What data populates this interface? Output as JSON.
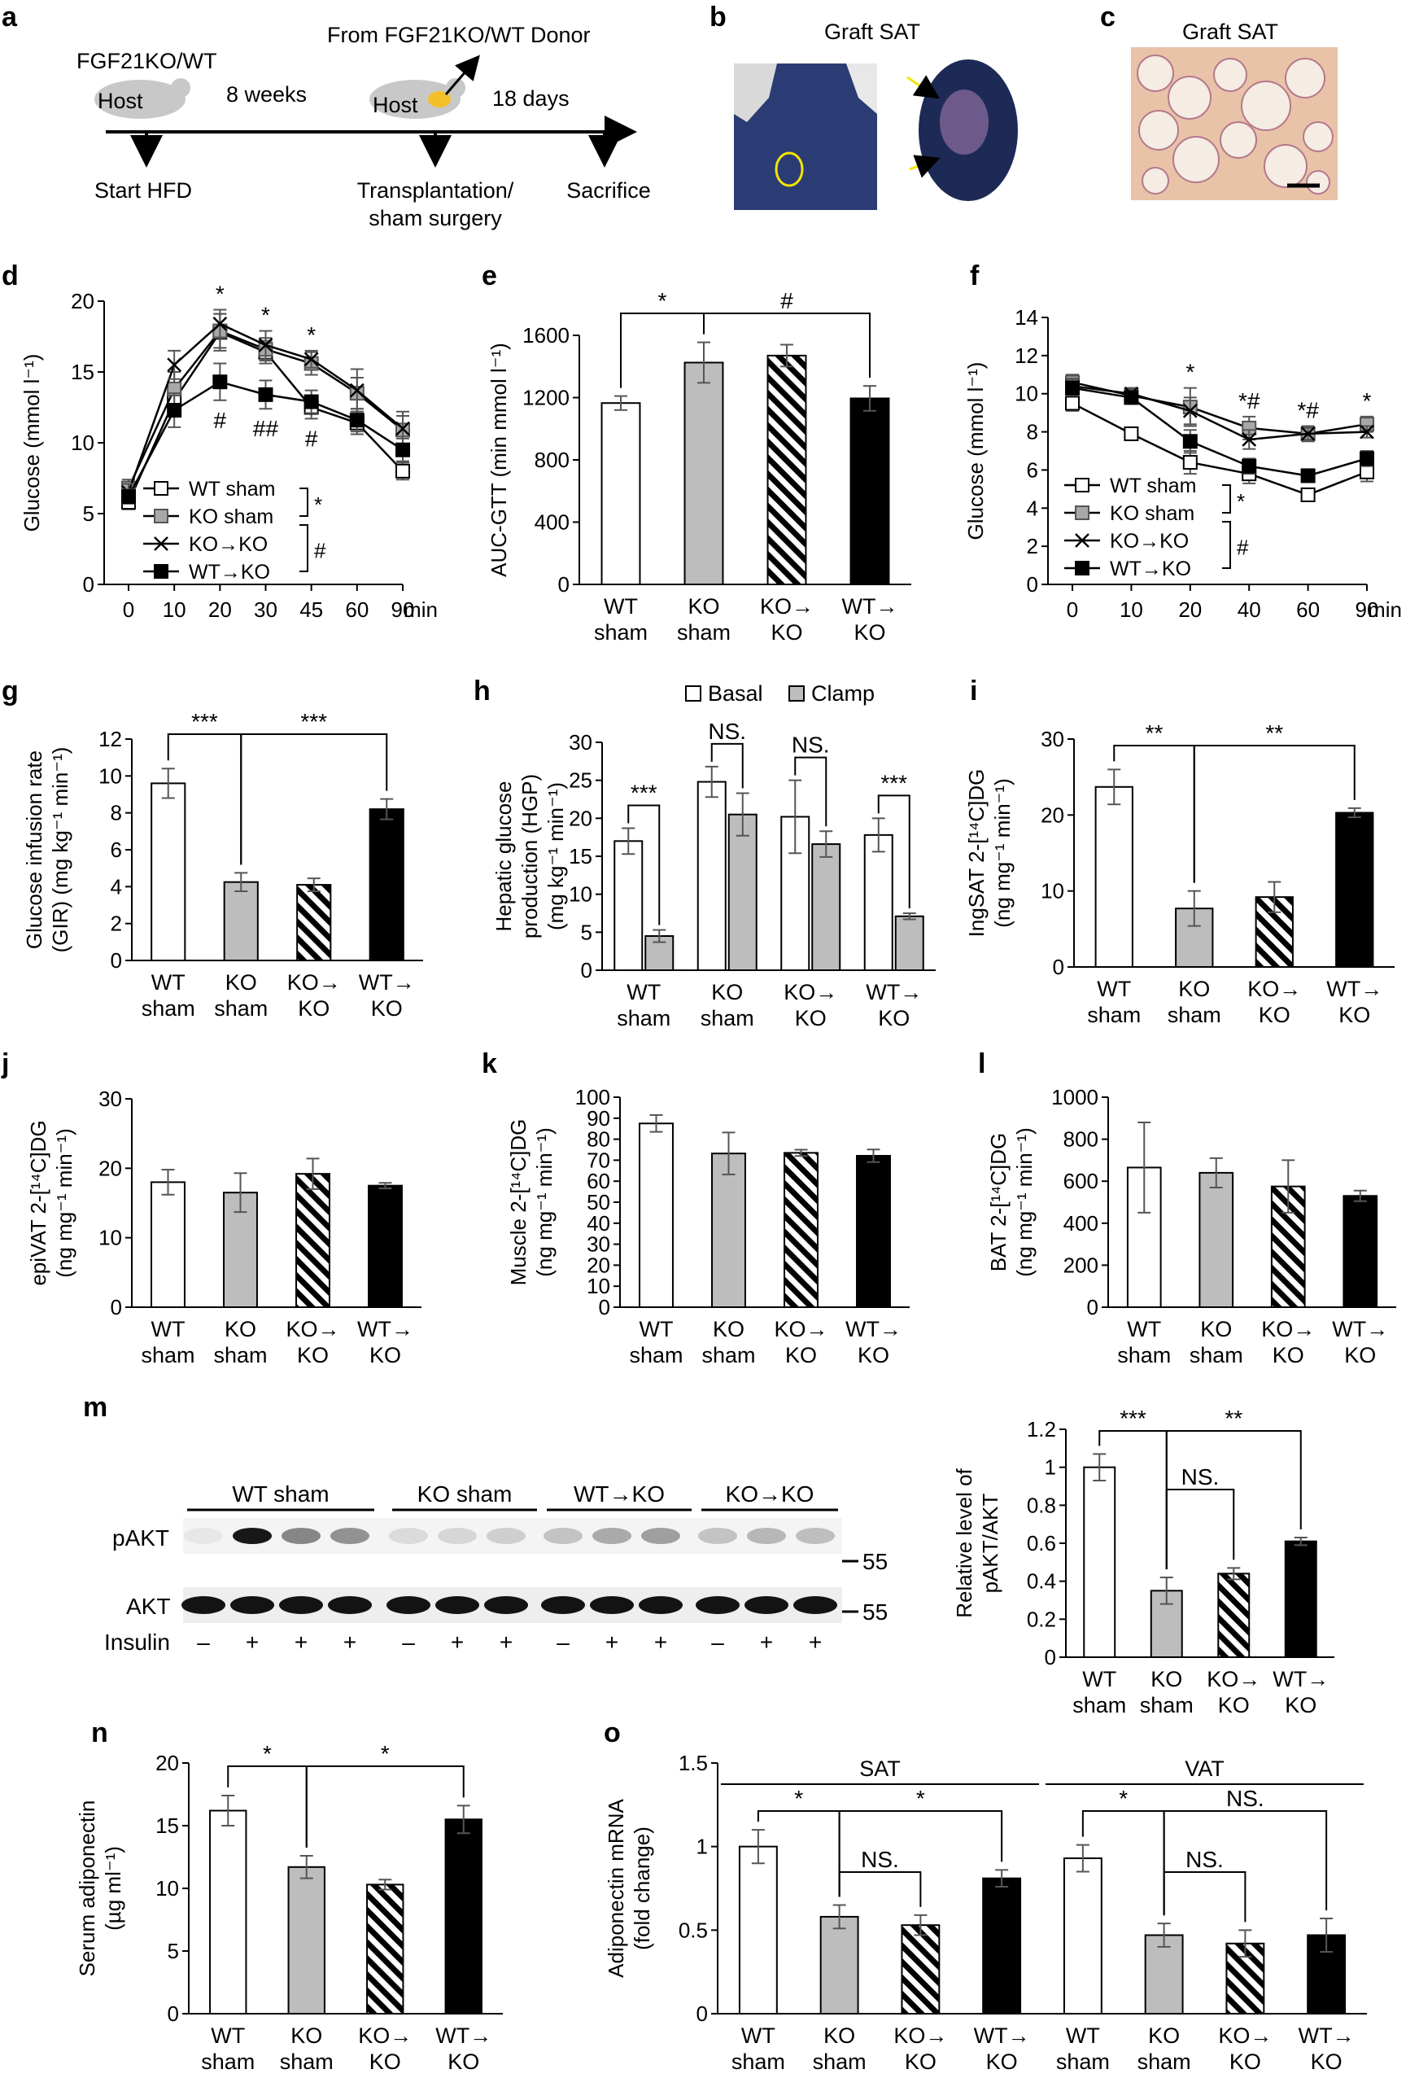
{
  "panel_letters": [
    "a",
    "b",
    "c",
    "d",
    "e",
    "f",
    "g",
    "h",
    "i",
    "j",
    "k",
    "l",
    "m",
    "n",
    "o"
  ],
  "timeline": {
    "host_label_1": "FGF21KO/WT",
    "host_word": "Host",
    "period_1": "8 weeks",
    "donor_label": "From FGF21KO/WT Donor",
    "period_2": "18 days",
    "event_1": "Start HFD",
    "event_2_line1": "Transplantation/",
    "event_2_line2": "sham surgery",
    "event_3": "Sacrifice"
  },
  "photo_b": {
    "title": "Graft SAT"
  },
  "photo_c": {
    "title": "Graft SAT"
  },
  "groups": [
    {
      "line1": "WT",
      "line2": "sham"
    },
    {
      "line1": "KO",
      "line2": "sham"
    },
    {
      "line1": "KO→",
      "line2": "KO"
    },
    {
      "line1": "WT→",
      "line2": "KO"
    }
  ],
  "colors": {
    "wt_sham": "#ffffff",
    "ko_sham": "#bdbdbd",
    "ko_ko": "hatched",
    "wt_ko": "#000000"
  },
  "chart_data": [
    {
      "panel": "d",
      "type": "line",
      "xlabel": "min",
      "ylabel": "Glucose (mmol l⁻¹)",
      "x": [
        "0",
        "10",
        "20",
        "30",
        "45",
        "60",
        "90"
      ],
      "ylim": [
        0,
        20
      ],
      "yticks": [
        0,
        5,
        10,
        15,
        20
      ],
      "series": [
        {
          "name": "WT sham",
          "marker": "open-square",
          "values": [
            5.8,
            13.0,
            17.8,
            16.4,
            12.5,
            11.4,
            8.0
          ],
          "err": [
            0.5,
            1.0,
            1.3,
            0.8,
            0.8,
            0.8,
            0.6
          ]
        },
        {
          "name": "KO sham",
          "marker": "grey-square",
          "values": [
            6.8,
            13.8,
            17.9,
            16.6,
            15.6,
            13.5,
            10.9
          ],
          "err": [
            0.6,
            1.2,
            1.2,
            0.8,
            0.8,
            1.1,
            1.0
          ]
        },
        {
          "name": "KO→KO",
          "marker": "cross",
          "values": [
            6.5,
            15.5,
            18.4,
            16.9,
            15.9,
            13.7,
            11.0
          ],
          "err": [
            0.6,
            1.0,
            1.0,
            1.0,
            0.6,
            1.5,
            1.2
          ]
        },
        {
          "name": "WT→KO",
          "marker": "filled-square",
          "values": [
            6.2,
            12.3,
            14.3,
            13.4,
            12.9,
            11.6,
            9.5
          ],
          "err": [
            0.5,
            1.2,
            1.3,
            1.0,
            0.8,
            0.8,
            0.8
          ]
        }
      ],
      "legend_brackets": [
        "*",
        "#"
      ],
      "annotations": [
        {
          "x_index": 2,
          "top": "*",
          "bottom": "#"
        },
        {
          "x_index": 3,
          "top": "*",
          "bottom": "##"
        },
        {
          "x_index": 4,
          "top": "*",
          "bottom": "#"
        }
      ]
    },
    {
      "panel": "e",
      "type": "bar",
      "ylabel": "AUC-GTT (min mmol l⁻¹)",
      "ylim": [
        0,
        1600
      ],
      "yticks": [
        0,
        400,
        800,
        1200,
        1600
      ],
      "values": [
        1165,
        1425,
        1470,
        1195
      ],
      "err": [
        45,
        130,
        70,
        80
      ],
      "brackets": [
        {
          "from": 0,
          "to": 1,
          "label": "*"
        },
        {
          "from": 1,
          "to": 3,
          "label": "#"
        }
      ]
    },
    {
      "panel": "f",
      "type": "line",
      "xlabel": "min",
      "ylabel": "Glucose (mmol l⁻¹)",
      "x": [
        "0",
        "10",
        "20",
        "40",
        "60",
        "90"
      ],
      "ylim": [
        0,
        14
      ],
      "yticks": [
        0,
        2,
        4,
        6,
        8,
        10,
        12,
        14
      ],
      "series": [
        {
          "name": "WT sham",
          "marker": "open-square",
          "values": [
            9.5,
            7.9,
            6.4,
            5.8,
            4.7,
            5.9
          ],
          "err": [
            0.4,
            0.3,
            0.6,
            0.5,
            0.3,
            0.5
          ]
        },
        {
          "name": "KO sham",
          "marker": "grey-square",
          "values": [
            10.6,
            9.9,
            9.3,
            8.2,
            7.9,
            8.4
          ],
          "err": [
            0.4,
            0.4,
            1.0,
            0.6,
            0.4,
            0.4
          ]
        },
        {
          "name": "KO→KO",
          "marker": "cross",
          "values": [
            10.4,
            10.0,
            9.1,
            7.6,
            7.9,
            8.0
          ],
          "err": [
            0.4,
            0.3,
            0.7,
            0.5,
            0.3,
            0.3
          ]
        },
        {
          "name": "WT→KO",
          "marker": "filled-square",
          "values": [
            10.3,
            9.8,
            7.5,
            6.2,
            5.7,
            6.6
          ],
          "err": [
            0.4,
            0.3,
            0.6,
            0.4,
            0.3,
            0.4
          ]
        }
      ],
      "legend_brackets": [
        "*",
        "#"
      ],
      "annotations": [
        {
          "x_index": 2,
          "top": "*"
        },
        {
          "x_index": 3,
          "top": "*#"
        },
        {
          "x_index": 4,
          "top": "*#"
        },
        {
          "x_index": 5,
          "top": "*"
        }
      ]
    },
    {
      "panel": "g",
      "type": "bar",
      "ylabel_line1": "Glucose infusion rate",
      "ylabel_line2": "(GIR) (mg kg⁻¹ min⁻¹)",
      "ylim": [
        0,
        12
      ],
      "yticks": [
        0,
        2,
        4,
        6,
        8,
        10,
        12
      ],
      "values": [
        9.6,
        4.25,
        4.1,
        8.2
      ],
      "err": [
        0.8,
        0.5,
        0.35,
        0.55
      ],
      "brackets": [
        {
          "from": 0,
          "to": 1,
          "label": "***"
        },
        {
          "from": 1,
          "to": 3,
          "label": "***"
        }
      ]
    },
    {
      "panel": "h",
      "type": "bar",
      "ylabel_line1": "Hepatic glucose",
      "ylabel_line2": "production (HGP)",
      "ylabel_line3": "(mg kg⁻¹ min⁻¹)",
      "ylim": [
        0,
        30
      ],
      "yticks": [
        0,
        5,
        10,
        15,
        20,
        25,
        30
      ],
      "legend": [
        "Basal",
        "Clamp"
      ],
      "series": [
        {
          "name": "Basal",
          "values": [
            17.0,
            24.8,
            20.2,
            17.8
          ],
          "err": [
            1.7,
            2.0,
            4.8,
            2.2
          ]
        },
        {
          "name": "Clamp",
          "values": [
            4.5,
            20.5,
            16.6,
            7.1
          ],
          "err": [
            0.8,
            2.8,
            1.7,
            0.4
          ]
        }
      ],
      "pair_labels": [
        "***",
        "NS.",
        "NS.",
        "***"
      ]
    },
    {
      "panel": "i",
      "type": "bar",
      "ylabel_line1": "IngSAT 2-[¹⁴C]DG",
      "ylabel_line2": "(ng mg⁻¹ min⁻¹)",
      "ylim": [
        0,
        30
      ],
      "yticks": [
        0,
        10,
        20,
        30
      ],
      "values": [
        23.7,
        7.7,
        9.2,
        20.3
      ],
      "err": [
        2.3,
        2.3,
        2.0,
        0.6
      ],
      "brackets": [
        {
          "from": 0,
          "to": 1,
          "label": "**"
        },
        {
          "from": 1,
          "to": 3,
          "label": "**"
        }
      ]
    },
    {
      "panel": "j",
      "type": "bar",
      "ylabel_line1": "epiVAT 2-[¹⁴C]DG",
      "ylabel_line2": "(ng mg⁻¹ min⁻¹)",
      "ylim": [
        0,
        30
      ],
      "yticks": [
        0,
        10,
        20,
        30
      ],
      "values": [
        18.0,
        16.5,
        19.2,
        17.5
      ],
      "err": [
        1.8,
        2.8,
        2.2,
        0.4
      ]
    },
    {
      "panel": "k",
      "type": "bar",
      "ylabel_line1": "Muscle 2-[¹⁴C]DG",
      "ylabel_line2": "(ng mg⁻¹ min⁻¹)",
      "ylim": [
        0,
        100
      ],
      "yticks": [
        0,
        10,
        20,
        30,
        40,
        50,
        60,
        70,
        80,
        90,
        100
      ],
      "values": [
        87.5,
        73.2,
        73.5,
        72.1
      ],
      "err": [
        4.0,
        10.0,
        1.5,
        3.0
      ]
    },
    {
      "panel": "l",
      "type": "bar",
      "ylabel_line1": "BAT 2-[¹⁴C]DG",
      "ylabel_line2": "(ng mg⁻¹ min⁻¹)",
      "ylim": [
        0,
        1000
      ],
      "yticks": [
        0,
        200,
        400,
        600,
        800,
        1000
      ],
      "values": [
        665,
        640,
        575,
        530
      ],
      "err": [
        215,
        70,
        125,
        25
      ]
    },
    {
      "panel": "m",
      "type": "bar",
      "ylabel_line1": "Relative level of",
      "ylabel_line2": "pAKT/AKT",
      "ylim": [
        0,
        1.2
      ],
      "yticks": [
        "0",
        "0.2",
        "0.4",
        "0.6",
        "0.8",
        "1",
        "1.2"
      ],
      "values": [
        1.0,
        0.35,
        0.44,
        0.61
      ],
      "err": [
        0.07,
        0.07,
        0.03,
        0.02
      ],
      "brackets": [
        {
          "from": 0,
          "to": 1,
          "label": "***"
        },
        {
          "from": 1,
          "to": 3,
          "label": "**"
        },
        {
          "from": 1,
          "to": 2,
          "label": "NS."
        }
      ]
    },
    {
      "panel": "n",
      "type": "bar",
      "ylabel_line1": "Serum adiponectin",
      "ylabel_line2": "(µg ml⁻¹)",
      "ylim": [
        0,
        20
      ],
      "yticks": [
        0,
        5,
        10,
        15,
        20
      ],
      "values": [
        16.2,
        11.7,
        10.3,
        15.5
      ],
      "err": [
        1.2,
        0.9,
        0.4,
        1.1
      ],
      "brackets": [
        {
          "from": 0,
          "to": 1,
          "label": "*"
        },
        {
          "from": 1,
          "to": 3,
          "label": "*"
        }
      ]
    },
    {
      "panel": "o",
      "type": "bar",
      "ylabel_line1": "Adiponectin mRNA",
      "ylabel_line2": "(fold change)",
      "ylim": [
        0,
        1.5
      ],
      "yticks": [
        "0",
        "0.5",
        "1",
        "1.5"
      ],
      "tissues": [
        {
          "name": "SAT",
          "values": [
            1.0,
            0.58,
            0.53,
            0.81
          ],
          "err": [
            0.1,
            0.07,
            0.06,
            0.05
          ],
          "brackets": [
            {
              "from": 0,
              "to": 1,
              "label": "*"
            },
            {
              "from": 1,
              "to": 3,
              "label": "*"
            },
            {
              "from": 1,
              "to": 2,
              "label": "NS."
            }
          ]
        },
        {
          "name": "VAT",
          "values": [
            0.93,
            0.47,
            0.42,
            0.47
          ],
          "err": [
            0.08,
            0.07,
            0.08,
            0.1
          ],
          "brackets": [
            {
              "from": 0,
              "to": 1,
              "label": "*"
            },
            {
              "from": 1,
              "to": 3,
              "label": "NS."
            },
            {
              "from": 1,
              "to": 2,
              "label": "NS."
            }
          ]
        }
      ]
    }
  ],
  "western": {
    "groups": [
      "WT sham",
      "KO sham",
      "WT→KO",
      "KO→KO"
    ],
    "rows": [
      "pAKT",
      "AKT"
    ],
    "marker": "55",
    "insulin_label": "Insulin",
    "insulin": [
      "–",
      "+",
      "+",
      "+",
      "–",
      "+",
      "+",
      "–",
      "+",
      "+",
      "–",
      "+",
      "+"
    ]
  }
}
